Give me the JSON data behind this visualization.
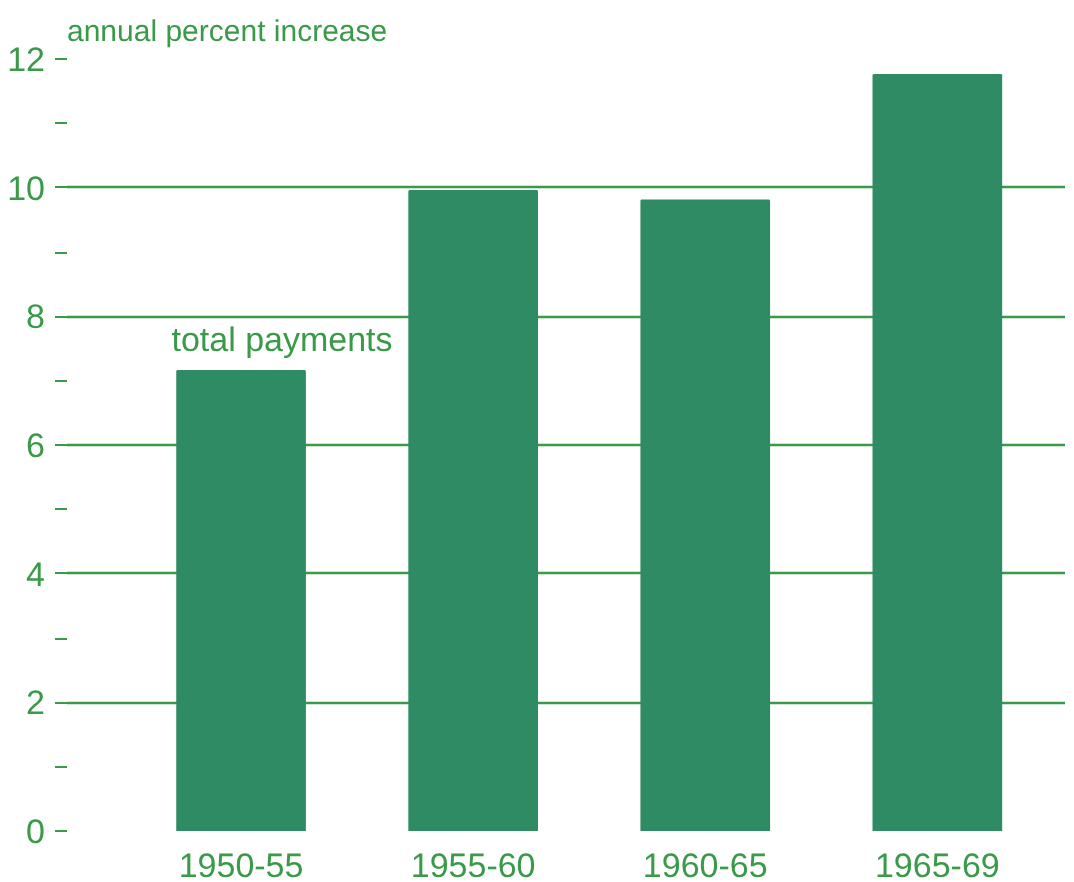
{
  "chart_data": {
    "type": "bar",
    "ylabel": "annual percent increase",
    "categories": [
      "1950-55",
      "1955-60",
      "1960-65",
      "1965-69"
    ],
    "values": [
      7.15,
      9.95,
      9.8,
      11.75
    ],
    "color": "#2e8b64",
    "ylim": [
      0,
      12
    ],
    "yticks": [
      0,
      {
        "value": 1,
        "label": null
      },
      2,
      {
        "value": 3,
        "label": null
      },
      4,
      {
        "value": 5,
        "label": null
      },
      6,
      {
        "value": 7,
        "label": null
      },
      8,
      {
        "value": 9,
        "label": null
      },
      10,
      {
        "value": 11,
        "label": null
      },
      12
    ],
    "grid": "y",
    "annotations": [
      {
        "text": "total payments",
        "x": "1950-55",
        "y": 7.15
      }
    ]
  }
}
